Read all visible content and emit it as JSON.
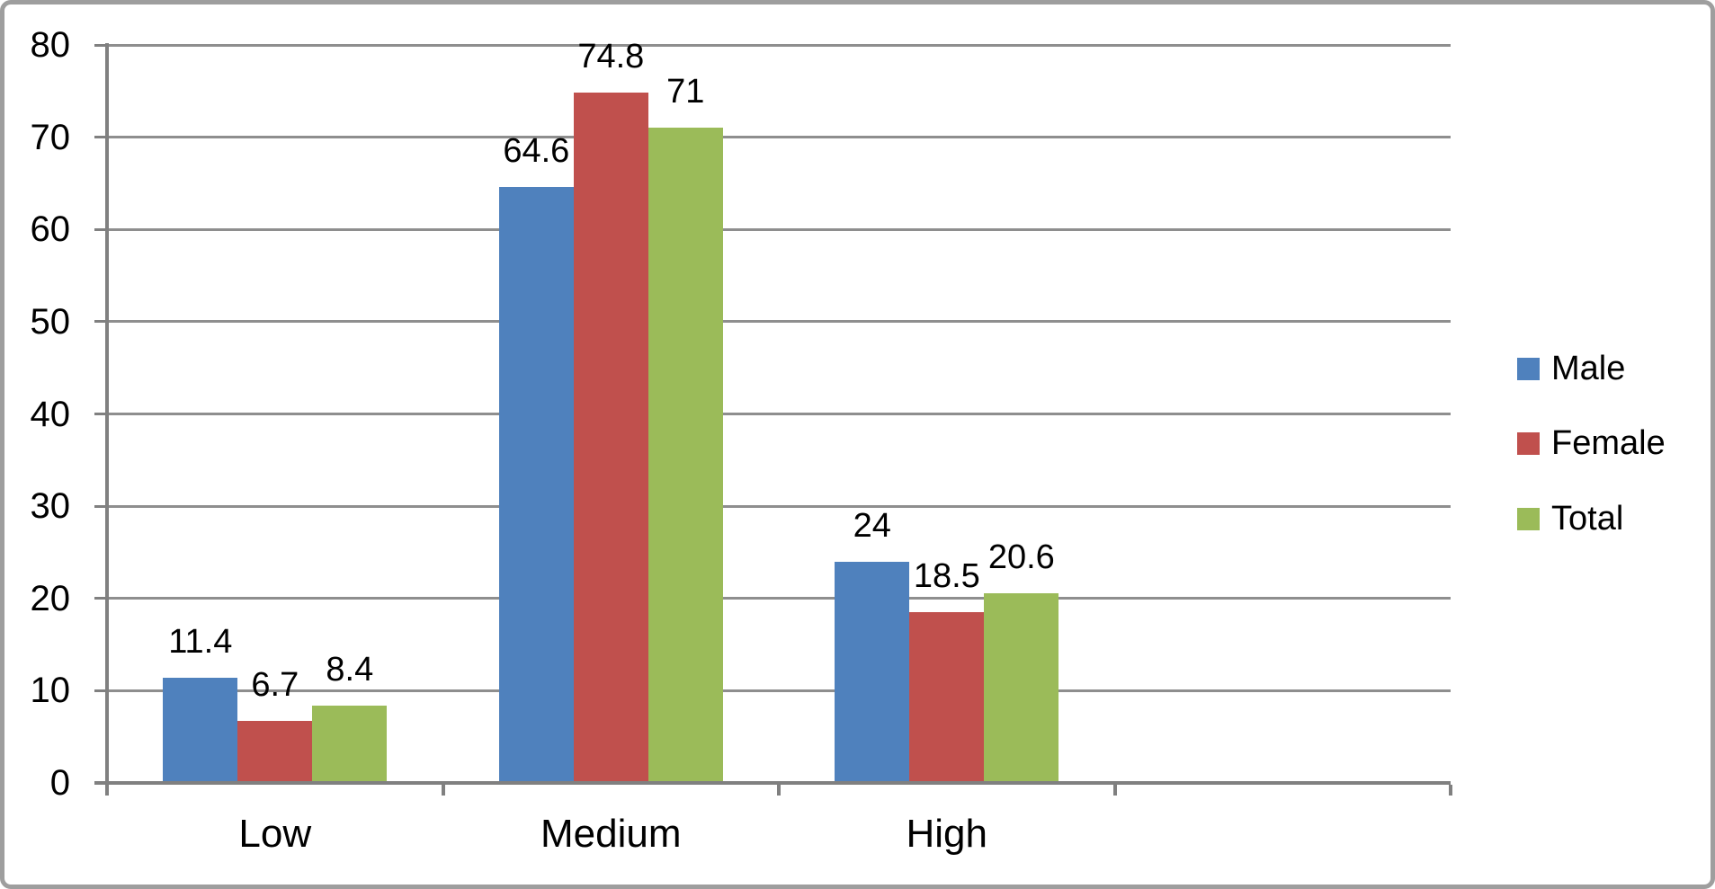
{
  "chart_data": {
    "type": "bar",
    "title": "",
    "xlabel": "",
    "ylabel": "",
    "categories": [
      "Low",
      "Medium",
      "High"
    ],
    "series": [
      {
        "name": "Male",
        "color": "#4F81BD",
        "values": [
          11.4,
          64.6,
          24
        ]
      },
      {
        "name": "Female",
        "color": "#C0504D",
        "values": [
          6.7,
          74.8,
          18.5
        ]
      },
      {
        "name": "Total",
        "color": "#9BBB59",
        "values": [
          8.4,
          71,
          20.6
        ]
      }
    ],
    "data_labels": [
      [
        "11.4",
        "64.6",
        "24"
      ],
      [
        "6.7",
        "74.8",
        "18.5"
      ],
      [
        "8.4",
        "71",
        "20.6"
      ]
    ],
    "ylim": [
      0,
      80
    ],
    "ytick_step": 10,
    "yticks": [
      0,
      10,
      20,
      30,
      40,
      50,
      60,
      70,
      80
    ],
    "grid": true,
    "legend_position": "right",
    "num_category_slots": 4,
    "colors": {
      "gridline": "#8E8E8E",
      "axis": "#808080",
      "text": "#000000",
      "background": "#FFFFFF",
      "frame_border": "#9E9E9E"
    }
  }
}
